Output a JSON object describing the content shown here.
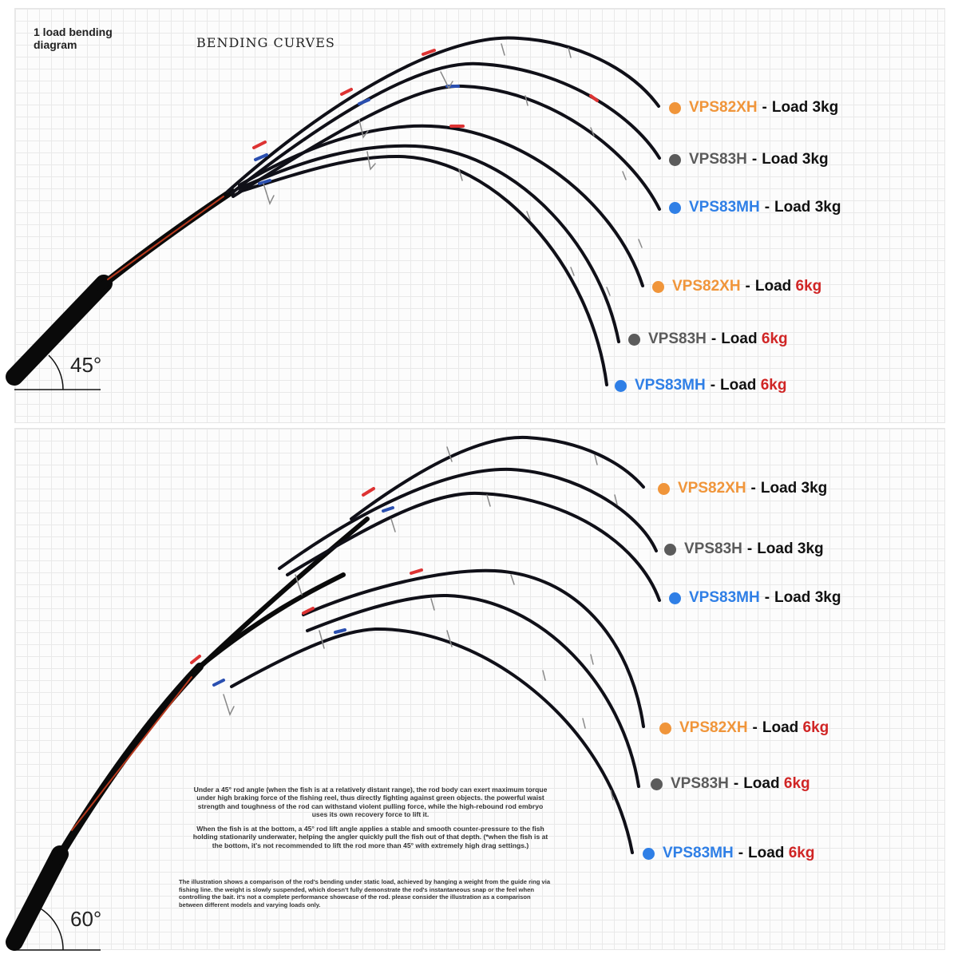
{
  "header": {
    "subtitle": "1 load bending diagram",
    "title": "BENDING CURVES"
  },
  "panels": {
    "top": {
      "angle": "45°",
      "labels": [
        {
          "model": "VPS82XH",
          "load": "3kg",
          "color": "#f0953a",
          "load_color": "#111111"
        },
        {
          "model": "VPS83H",
          "load": "3kg",
          "color": "#5b5b5b",
          "load_color": "#111111"
        },
        {
          "model": "VPS83MH",
          "load": "3kg",
          "color": "#2f7fe6",
          "load_color": "#111111"
        },
        {
          "model": "VPS82XH",
          "load": "6kg",
          "color": "#f0953a",
          "load_color": "#d02525"
        },
        {
          "model": "VPS83H",
          "load": "6kg",
          "color": "#5b5b5b",
          "load_color": "#d02525"
        },
        {
          "model": "VPS83MH",
          "load": "6kg",
          "color": "#2f7fe6",
          "load_color": "#d02525"
        }
      ]
    },
    "bottom": {
      "angle": "60°",
      "labels": [
        {
          "model": "VPS82XH",
          "load": "3kg",
          "color": "#f0953a",
          "load_color": "#111111"
        },
        {
          "model": "VPS83H",
          "load": "3kg",
          "color": "#5b5b5b",
          "load_color": "#111111"
        },
        {
          "model": "VPS83MH",
          "load": "3kg",
          "color": "#2f7fe6",
          "load_color": "#111111"
        },
        {
          "model": "VPS82XH",
          "load": "6kg",
          "color": "#f0953a",
          "load_color": "#d02525"
        },
        {
          "model": "VPS83H",
          "load": "6kg",
          "color": "#5b5b5b",
          "load_color": "#d02525"
        },
        {
          "model": "VPS83MH",
          "load": "6kg",
          "color": "#2f7fe6",
          "load_color": "#d02525"
        }
      ]
    }
  },
  "load_word": "Load",
  "separator": "-",
  "description": {
    "paragraph1": "Under a 45° rod angle (when the fish is at a relatively distant range), the rod body can exert maximum torque under high braking force of the fishing reel, thus directly fighting against green objects. the powerful waist strength and toughness of the rod can withstand violent pulling force, while the high-rebound rod embryo uses its own recovery force to lift it.",
    "paragraph2": "When the fish is at the bottom, a 45° rod lift angle applies a stable and smooth counter-pressure to the fish holding stationarily underwater, helping the angler quickly pull the fish out of that depth. (*when the fish is at the bottom, it's not recommended to lift the rod more than 45° with extremely high drag settings.)",
    "note": "The illustration shows a comparison of the rod's bending under static load, achieved by hanging a weight from the guide ring via fishing line. the weight is slowly suspended, which doesn't fully demonstrate the rod's instantaneous snap or the feel when controlling the bait. it's not a complete performance showcase of the rod. please consider the illustration as a comparison between different models and varying loads only."
  }
}
